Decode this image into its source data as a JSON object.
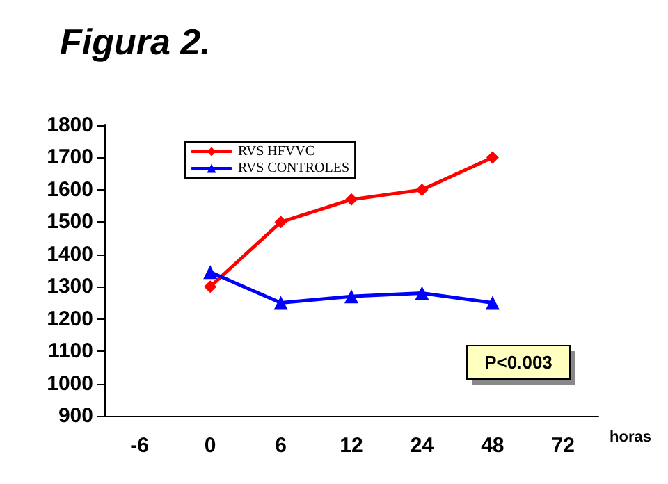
{
  "chart_data": {
    "type": "line",
    "title": "Figura 2.",
    "xlabel": "horas",
    "categories": [
      "-6",
      "0",
      "6",
      "12",
      "24",
      "48",
      "72"
    ],
    "series": [
      {
        "name": "RVS HFVVC",
        "color": "#ff0000",
        "marker": "diamond",
        "values": [
          null,
          1300,
          1500,
          1570,
          1600,
          1700,
          null
        ]
      },
      {
        "name": "RVS CONTROLES",
        "color": "#0000ff",
        "marker": "triangle",
        "values": [
          null,
          1345,
          1250,
          1270,
          1280,
          1250,
          null
        ]
      }
    ],
    "ylim": [
      900,
      1800
    ],
    "yticks": [
      900,
      1000,
      1100,
      1200,
      1300,
      1400,
      1500,
      1600,
      1700,
      1800
    ],
    "grid": false,
    "legend": "top left",
    "annotations": [
      "P<0.003"
    ]
  }
}
